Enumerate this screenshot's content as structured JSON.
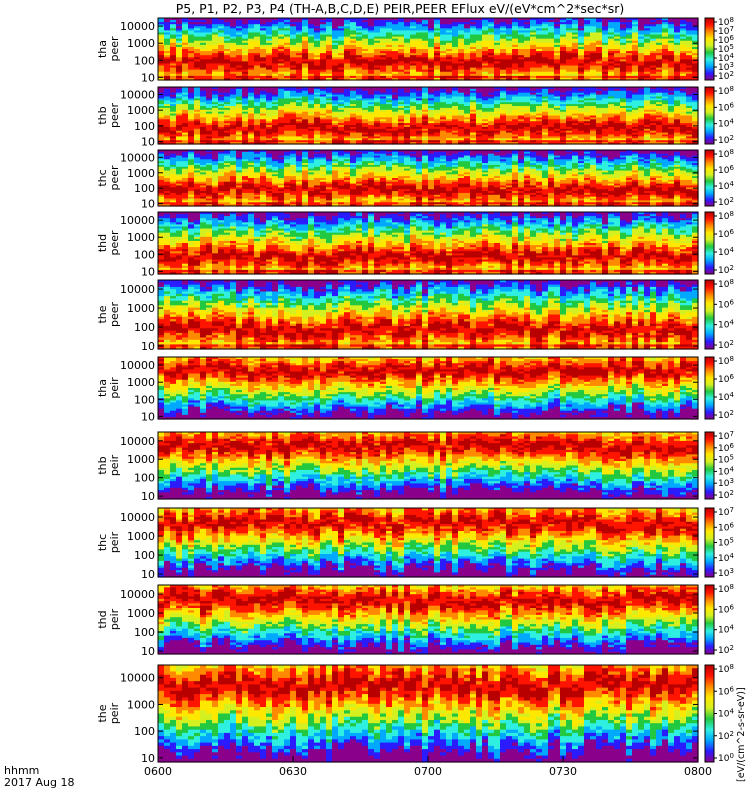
{
  "title": "P5, P1, P2, P3, P4 (TH-A,B,C,D,E) PEIR,PEER EFlux eV/(eV*cm^2*sec*sr)",
  "time_axis": {
    "label_line1": "hhmm",
    "label_line2": "2017 Aug 18",
    "ticks": [
      "0600",
      "0630",
      "0700",
      "0730",
      "0800"
    ]
  },
  "colorbar_label": "[eV/(cm^2-s-sr-eV)]",
  "chart_data": {
    "type": "heatmap",
    "x_unit": "UT hhmm",
    "x_range": [
      "0600",
      "0800"
    ],
    "y_scale": "log",
    "colormap": [
      "#8a008a",
      "#2a1cff",
      "#00a8ff",
      "#2ff0e0",
      "#22c840",
      "#d4f020",
      "#ffe800",
      "#ff8a00",
      "#ff1400",
      "#b80000"
    ],
    "panels": [
      {
        "name": "tha peer",
        "ylabel": [
          "tha",
          "peer"
        ],
        "yticks": [
          10,
          100,
          1000,
          10000
        ],
        "ylim": [
          7,
          30000
        ],
        "colorbar_ticks": [
          "10^8",
          "10^7",
          "10^6",
          "10^5",
          "10^4",
          "10^3",
          "10^2"
        ]
      },
      {
        "name": "thb peer",
        "ylabel": [
          "thb",
          "peer"
        ],
        "yticks": [
          10,
          100,
          1000,
          10000
        ],
        "ylim": [
          7,
          30000
        ],
        "colorbar_ticks": [
          "10^8",
          "10^6",
          "10^4",
          "10^2"
        ]
      },
      {
        "name": "thc peer",
        "ylabel": [
          "thc",
          "peer"
        ],
        "yticks": [
          10,
          100,
          1000,
          10000
        ],
        "ylim": [
          7,
          30000
        ],
        "colorbar_ticks": [
          "10^8",
          "10^6",
          "10^4",
          "10^2"
        ]
      },
      {
        "name": "thd peer",
        "ylabel": [
          "thd",
          "peer"
        ],
        "yticks": [
          10,
          100,
          1000,
          10000
        ],
        "ylim": [
          7,
          30000
        ],
        "colorbar_ticks": [
          "10^8",
          "10^6",
          "10^4",
          "10^2"
        ]
      },
      {
        "name": "the peer",
        "ylabel": [
          "the",
          "peer"
        ],
        "yticks": [
          10,
          100,
          1000,
          10000
        ],
        "ylim": [
          7,
          30000
        ],
        "colorbar_ticks": [
          "10^8",
          "10^6",
          "10^4",
          "10^2"
        ]
      },
      {
        "name": "tha peir",
        "ylabel": [
          "tha",
          "peir"
        ],
        "yticks": [
          10,
          100,
          1000,
          10000
        ],
        "ylim": [
          7,
          30000
        ],
        "colorbar_ticks": [
          "10^8",
          "10^6",
          "10^4",
          "10^2"
        ]
      },
      {
        "name": "thb peir",
        "ylabel": [
          "thb",
          "peir"
        ],
        "yticks": [
          10,
          100,
          1000,
          10000
        ],
        "ylim": [
          7,
          30000
        ],
        "colorbar_ticks": [
          "10^7",
          "10^6",
          "10^5",
          "10^4",
          "10^3",
          "10^2"
        ]
      },
      {
        "name": "thc peir",
        "ylabel": [
          "thc",
          "peir"
        ],
        "yticks": [
          10,
          100,
          1000,
          10000
        ],
        "ylim": [
          7,
          30000
        ],
        "colorbar_ticks": [
          "10^7",
          "10^6",
          "10^5",
          "10^4",
          "10^3"
        ]
      },
      {
        "name": "thd peir",
        "ylabel": [
          "thd",
          "peir"
        ],
        "yticks": [
          10,
          100,
          1000,
          10000
        ],
        "ylim": [
          7,
          30000
        ],
        "colorbar_ticks": [
          "10^8",
          "10^6",
          "10^4",
          "10^2"
        ]
      },
      {
        "name": "the peir",
        "ylabel": [
          "the",
          "peir"
        ],
        "yticks": [
          10,
          100,
          1000,
          10000
        ],
        "ylim": [
          7,
          30000
        ],
        "colorbar_ticks": [
          "10^8",
          "10^6",
          "10^4",
          "10^2",
          "10^0"
        ]
      }
    ]
  }
}
